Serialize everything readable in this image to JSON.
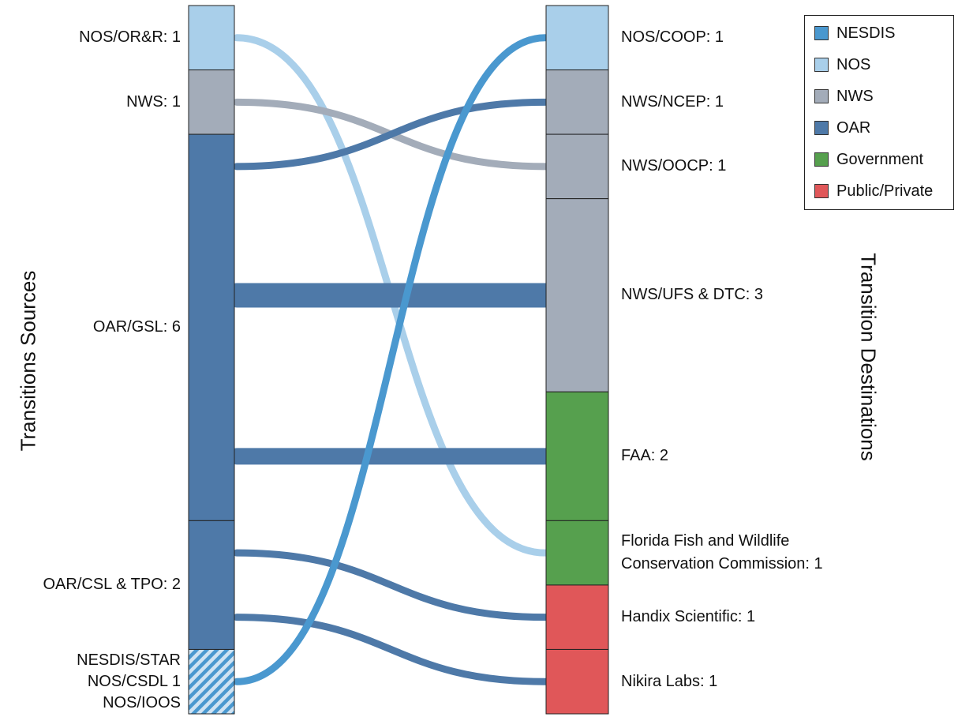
{
  "legend": {
    "items": [
      {
        "label": "NESDIS",
        "color": "#4a98cf"
      },
      {
        "label": "NOS",
        "color": "#a9cfea"
      },
      {
        "label": "NWS",
        "color": "#a3acb9"
      },
      {
        "label": "OAR",
        "color": "#4e79a8"
      },
      {
        "label": "Government",
        "color": "#56a04e"
      },
      {
        "label": "Public/Private",
        "color": "#e05759"
      }
    ]
  },
  "axis_titles": {
    "left": "Transitions Sources",
    "right": "Transition Destinations"
  },
  "sources": [
    {
      "label": "NOS/OR&R: 1",
      "value": 1,
      "color": "#a9cfea"
    },
    {
      "label": "NWS: 1",
      "value": 1,
      "color": "#a3acb9"
    },
    {
      "label": "OAR/GSL: 6",
      "value": 6,
      "color": "#4e79a8"
    },
    {
      "label": "OAR/CSL & TPO: 2",
      "value": 2,
      "color": "#4e79a8"
    },
    {
      "label_lines": [
        "NESDIS/STAR",
        "NOS/CSDL  1",
        "NOS/IOOS"
      ],
      "value": 1,
      "color": "#4a98cf",
      "hatched": true
    }
  ],
  "destinations": [
    {
      "label": "NOS/COOP: 1",
      "value": 1,
      "color": "#a9cfea"
    },
    {
      "label": "NWS/NCEP: 1",
      "value": 1,
      "color": "#a3acb9"
    },
    {
      "label": "NWS/OOCP: 1",
      "value": 1,
      "color": "#a3acb9"
    },
    {
      "label": "NWS/UFS & DTC: 3",
      "value": 3,
      "color": "#a3acb9"
    },
    {
      "label": "FAA: 2",
      "value": 2,
      "color": "#56a04e"
    },
    {
      "label_lines": [
        "Florida Fish and Wildlife",
        "Conservation Commission: 1"
      ],
      "value": 1,
      "color": "#56a04e"
    },
    {
      "label": "Handix Scientific: 1",
      "value": 1,
      "color": "#e05759"
    },
    {
      "label": "Nikira Labs: 1",
      "value": 1,
      "color": "#e05759"
    }
  ],
  "flows": [
    {
      "source": 0,
      "target": 5,
      "value": 1,
      "color": "#a9cfea"
    },
    {
      "source": 1,
      "target": 2,
      "value": 1,
      "color": "#a3acb9"
    },
    {
      "source": 2,
      "target": 1,
      "value": 1,
      "color": "#4e79a8"
    },
    {
      "source": 2,
      "target": 3,
      "value": 3,
      "color": "#4e79a8"
    },
    {
      "source": 2,
      "target": 4,
      "value": 2,
      "color": "#4e79a8"
    },
    {
      "source": 3,
      "target": 6,
      "value": 1,
      "color": "#4e79a8"
    },
    {
      "source": 3,
      "target": 7,
      "value": 1,
      "color": "#4e79a8"
    },
    {
      "source": 4,
      "target": 0,
      "value": 1,
      "color": "#4a98cf"
    }
  ]
}
